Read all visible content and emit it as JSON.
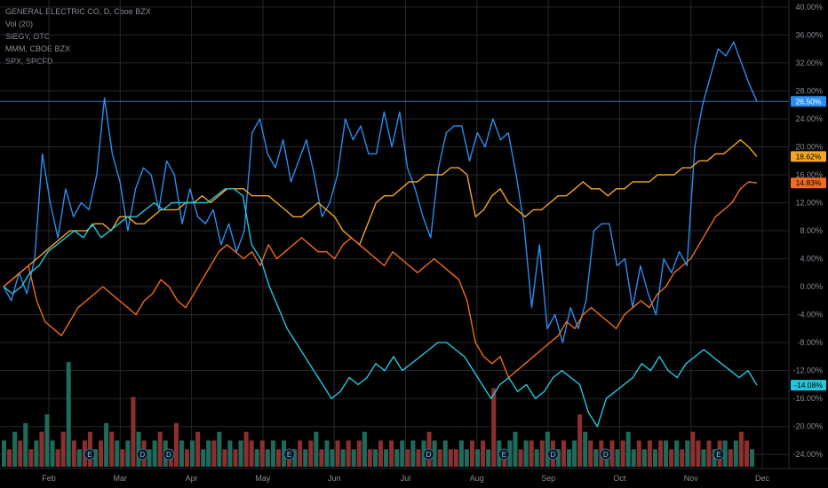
{
  "legend": {
    "line1": "GENERAL ELECTRIC CO, D, Cboe BZX",
    "line2": "Vol (20)",
    "line3": "SIEGY, OTC",
    "line4": "MMM, CBOE BZX",
    "line5": "SPX, SPCFD"
  },
  "chart_data": {
    "type": "line",
    "x_ticks": [
      "Feb",
      "Mar",
      "Apr",
      "May",
      "Jun",
      "Jul",
      "Aug",
      "Sep",
      "Oct",
      "Nov",
      "Dec"
    ],
    "y_ticks": [
      "40.00%",
      "36.00%",
      "32.00%",
      "28.00%",
      "24.00%",
      "20.00%",
      "16.00%",
      "12.00%",
      "8.00%",
      "4.00%",
      "0.00%",
      "-4.00%",
      "-8.00%",
      "-12.00%",
      "-16.00%",
      "-20.00%",
      "-24.00%"
    ],
    "ylim": [
      -26,
      41
    ],
    "grid": true,
    "series": [
      {
        "name": "GENERAL ELECTRIC CO",
        "color": "#2a8ef0",
        "last_label": "26.50%",
        "values": [
          0,
          -2,
          2,
          -1,
          4,
          19,
          12,
          7,
          14,
          10,
          12,
          11,
          16,
          27,
          19,
          15,
          8,
          14,
          17,
          16,
          11,
          18,
          16,
          9,
          14,
          10,
          9,
          11,
          6,
          9,
          5,
          8,
          22,
          24,
          19,
          17,
          21,
          15,
          18,
          21,
          16,
          10,
          12,
          16,
          24,
          21,
          23,
          19,
          19,
          25,
          20,
          25,
          17,
          14,
          10,
          7,
          17,
          22,
          23,
          23,
          18,
          22,
          20,
          24,
          21,
          22,
          16,
          9,
          -3,
          6,
          -6,
          -4,
          -8,
          -3,
          -6,
          -2,
          8,
          9,
          9,
          3,
          4,
          -3,
          3,
          -1,
          -4,
          4,
          2,
          5,
          3,
          20,
          26,
          30,
          34,
          33,
          35,
          32,
          29,
          26.5
        ]
      },
      {
        "name": "SIEGY",
        "color": "#f5a623",
        "last_label": "18.62%",
        "values": [
          0,
          1,
          2,
          3,
          4,
          5,
          6,
          7,
          8,
          8,
          8,
          9,
          9,
          8,
          10,
          10,
          9,
          9,
          10,
          11,
          11,
          11,
          12,
          12,
          13,
          12,
          13,
          14,
          14,
          14,
          13,
          13,
          13,
          12,
          11,
          10,
          10,
          11,
          12,
          11,
          10,
          8,
          7,
          6,
          9,
          12,
          13,
          13,
          14,
          15,
          15,
          16,
          16,
          16,
          17,
          17,
          16,
          10,
          11,
          13,
          14,
          12,
          11,
          10,
          11,
          11,
          12,
          13,
          13,
          14,
          15,
          14,
          14,
          13,
          14,
          14,
          15,
          15,
          15,
          16,
          16,
          16,
          17,
          17,
          18,
          18,
          19,
          19,
          20,
          21,
          20,
          18.62
        ]
      },
      {
        "name": "MMM",
        "color": "#f26b1d",
        "last_label": "14.83%",
        "values": [
          0,
          1,
          2,
          3,
          -2,
          -5,
          -6,
          -7,
          -5,
          -3,
          -2,
          -1,
          0,
          -1,
          -2,
          -3,
          -4,
          -2,
          -1,
          1,
          0,
          -2,
          -3,
          -1,
          1,
          3,
          5,
          6,
          5,
          4,
          5,
          3,
          6,
          4,
          5,
          6,
          7,
          6,
          5,
          5,
          4,
          6,
          7,
          6,
          5,
          4,
          3,
          5,
          4,
          3,
          2,
          3,
          4,
          3,
          2,
          1,
          -2,
          -8,
          -10,
          -11,
          -10,
          -13,
          -12,
          -11,
          -10,
          -9,
          -8,
          -7,
          -5,
          -6,
          -4,
          -3,
          -4,
          -5,
          -6,
          -4,
          -3,
          -2,
          -3,
          -1,
          0,
          2,
          3,
          4,
          6,
          8,
          10,
          11,
          12,
          14,
          15,
          14.83
        ]
      },
      {
        "name": "SPX",
        "color": "#26c6da",
        "last_label": "-14.08%",
        "values": [
          0,
          -1,
          0,
          2,
          3,
          5,
          6,
          7,
          8,
          7,
          9,
          7,
          8,
          9,
          10,
          10,
          11,
          12,
          11,
          12,
          12,
          12,
          12,
          12,
          13,
          14,
          14,
          13,
          6,
          4,
          0,
          -3,
          -6,
          -8,
          -10,
          -12,
          -14,
          -16,
          -15,
          -13,
          -14,
          -13,
          -11,
          -12,
          -10,
          -12,
          -11,
          -10,
          -9,
          -8,
          -8,
          -9,
          -10,
          -12,
          -14,
          -16,
          -14,
          -13,
          -15,
          -14,
          -16,
          -15,
          -13,
          -12,
          -13,
          -14,
          -18,
          -20,
          -16,
          -15,
          -14,
          -13,
          -11,
          -12,
          -10,
          -12,
          -13,
          -11,
          -10,
          -9,
          -10,
          -11,
          -12,
          -13,
          -12,
          -14.08
        ]
      }
    ],
    "volume": {
      "name": "Vol (20)",
      "up_color": "#1e6b5c",
      "down_color": "#8b2f2f",
      "values": [
        3,
        2,
        4,
        3,
        5,
        2,
        3,
        4,
        6,
        3,
        2,
        4,
        12,
        3,
        2,
        3,
        4,
        2,
        3,
        5,
        4,
        3,
        2,
        3,
        8,
        4,
        3,
        2,
        3,
        4,
        3,
        2,
        5,
        3,
        2,
        3,
        4,
        2,
        3,
        3,
        4,
        2,
        3,
        2,
        3,
        4,
        3,
        2,
        3,
        2,
        3,
        2,
        3,
        2,
        2,
        3,
        2,
        3,
        4,
        2,
        3,
        2,
        3,
        2,
        3,
        2,
        3,
        4,
        2,
        2,
        3,
        2,
        3,
        2,
        3,
        2,
        3,
        2,
        3,
        4,
        3,
        2,
        3,
        2,
        2,
        3,
        2,
        3,
        2,
        3,
        2,
        9,
        3,
        2,
        3,
        4,
        2,
        3,
        3,
        2,
        3,
        4,
        3,
        2,
        3,
        2,
        3,
        6,
        4,
        3,
        2,
        3,
        2,
        3,
        2,
        3,
        4,
        2,
        3,
        2,
        3,
        2,
        3,
        3,
        2,
        3,
        2,
        3,
        4,
        3,
        2,
        3,
        2,
        3,
        3,
        2,
        3,
        4,
        3,
        2
      ],
      "up": [
        1,
        0,
        1,
        0,
        1,
        0,
        1,
        0,
        1,
        1,
        0,
        0,
        1,
        0,
        1,
        0,
        0,
        1,
        0,
        1,
        0,
        1,
        0,
        1,
        0,
        1,
        0,
        1,
        1,
        0,
        1,
        0,
        0,
        1,
        0,
        1,
        0,
        1,
        1,
        0,
        1,
        0,
        1,
        0,
        1,
        0,
        0,
        1,
        0,
        1,
        1,
        0,
        1,
        0,
        1,
        0,
        1,
        0,
        1,
        0,
        1,
        1,
        0,
        1,
        0,
        1,
        0,
        1,
        0,
        1,
        0,
        1,
        0,
        1,
        1,
        0,
        1,
        0,
        1,
        0,
        1,
        0,
        1,
        0,
        0,
        1,
        1,
        0,
        1,
        0,
        1,
        0,
        1,
        0,
        1,
        1,
        0,
        1,
        0,
        1,
        0,
        1,
        0,
        1,
        0,
        1,
        1,
        0,
        1,
        0,
        1,
        0,
        1,
        0,
        1,
        0,
        1,
        1,
        0,
        1,
        0,
        1,
        0,
        1,
        0,
        1,
        0,
        1,
        0,
        0,
        1,
        0,
        1,
        0,
        1,
        0,
        1,
        0,
        0,
        1
      ]
    },
    "events": [
      {
        "label": "E",
        "x_index": 0.06
      },
      {
        "label": "D",
        "x_index": 0.13
      },
      {
        "label": "D",
        "x_index": 0.165
      },
      {
        "label": "E",
        "x_index": 0.325
      },
      {
        "label": "D",
        "x_index": 0.51
      },
      {
        "label": "E",
        "x_index": 0.61
      },
      {
        "label": "D",
        "x_index": 0.675
      },
      {
        "label": "D",
        "x_index": 0.745
      },
      {
        "label": "E",
        "x_index": 0.895
      }
    ]
  }
}
